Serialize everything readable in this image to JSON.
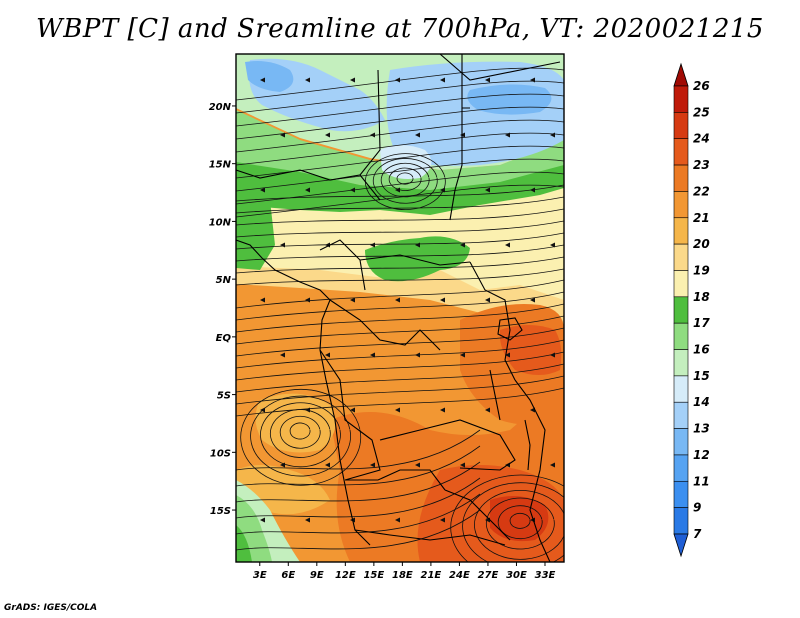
{
  "chart_data": {
    "type": "heatmap",
    "title": "WBPT [C] and Sreamline at 700hPa, VT: 2020021215",
    "field": "Wet-bulb potential temperature with streamlines",
    "pressure_level": "700hPa",
    "valid_time": "2020021215",
    "units": "C",
    "x_tick_labels": [
      "3E",
      "6E",
      "9E",
      "12E",
      "15E",
      "18E",
      "21E",
      "24E",
      "27E",
      "30E",
      "33E"
    ],
    "x_tick_values": [
      3,
      6,
      9,
      12,
      15,
      18,
      21,
      24,
      27,
      30,
      33
    ],
    "y_tick_labels": [
      "20N",
      "15N",
      "10N",
      "5N",
      "EQ",
      "5S",
      "10S",
      "15S"
    ],
    "y_tick_values": [
      20,
      15,
      10,
      5,
      0,
      -5,
      -10,
      -15
    ],
    "lon_range": [
      0.5,
      35.0
    ],
    "lat_range": [
      -19.5,
      24.5
    ],
    "colorbar": {
      "levels": [
        "7",
        "9",
        "11",
        "12",
        "13",
        "14",
        "15",
        "16",
        "17",
        "18",
        "19",
        "20",
        "21",
        "22",
        "23",
        "24",
        "25",
        "26"
      ],
      "colors": [
        "#1f5fd6",
        "#2a7ae6",
        "#3b8ff0",
        "#56a3f2",
        "#78b8f4",
        "#a4d0f8",
        "#d6ecf9",
        "#c4efbe",
        "#8fdc80",
        "#4fbe3e",
        "#fbf0b0",
        "#fbd98a",
        "#f5b64a",
        "#f29733",
        "#ec7a24",
        "#e55a1c",
        "#d63a12",
        "#bf1a0a",
        "#a00a04"
      ]
    }
  },
  "footer": "GrADS: IGES/COLA"
}
